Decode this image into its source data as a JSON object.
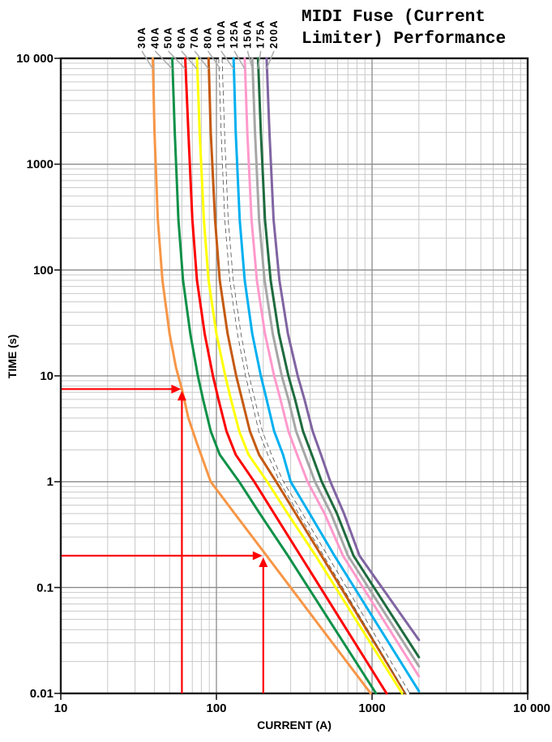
{
  "title": {
    "line1": "MIDI Fuse (Current",
    "line2": "Limiter) Performance"
  },
  "axes": {
    "x_label": "CURRENT (A)",
    "y_label": "TIME (s)",
    "x_ticks": [
      "10",
      "100",
      "1000",
      "10 000"
    ],
    "y_ticks": [
      "10 000",
      "1000",
      "100",
      "10",
      "1",
      "0.1",
      "0.01"
    ]
  },
  "colors": {
    "annotation": "#FF0000",
    "grid_major": "#8C8C8C",
    "grid_minor": "#C9C9C9",
    "axis_border": "#1A1A1A",
    "leader_line": "#ABABAB"
  },
  "chart_data": {
    "type": "line",
    "title": "MIDI Fuse (Current Limiter) Performance",
    "xlabel": "CURRENT (A)",
    "ylabel": "TIME (s)",
    "x_axis": {
      "scale": "log",
      "min": 10,
      "max": 10000
    },
    "y_axis": {
      "scale": "log",
      "min": 0.01,
      "max": 10000
    },
    "grid": "log major and minor, on",
    "legend": "rotated labels above plot with leader lines",
    "series": [
      {
        "name": "30A",
        "color": "#F79646",
        "style": "solid",
        "points": [
          [
            39,
            10000
          ],
          [
            40,
            2000
          ],
          [
            42,
            300
          ],
          [
            45,
            80
          ],
          [
            50,
            25
          ],
          [
            55,
            12
          ],
          [
            60,
            7.5
          ],
          [
            66,
            4
          ],
          [
            75,
            2.3
          ],
          [
            92,
            1
          ],
          [
            131,
            0.5
          ],
          [
            210,
            0.2
          ],
          [
            300,
            0.1
          ],
          [
            514,
            0.035
          ],
          [
            980,
            0.01
          ]
        ]
      },
      {
        "name": "40A",
        "color": "#0F9148",
        "style": "solid",
        "points": [
          [
            52,
            10000
          ],
          [
            54,
            2000
          ],
          [
            57,
            300
          ],
          [
            61,
            80
          ],
          [
            68,
            25
          ],
          [
            76,
            10
          ],
          [
            82,
            6
          ],
          [
            92,
            3
          ],
          [
            105,
            1.8
          ],
          [
            140,
            1
          ],
          [
            190,
            0.5
          ],
          [
            288,
            0.2
          ],
          [
            1060,
            0.01
          ]
        ]
      },
      {
        "name": "50A",
        "color": "#FF0000",
        "style": "solid",
        "points": [
          [
            63,
            10000
          ],
          [
            66,
            2000
          ],
          [
            70,
            300
          ],
          [
            75,
            80
          ],
          [
            84,
            25
          ],
          [
            95,
            10
          ],
          [
            103,
            6
          ],
          [
            116,
            3
          ],
          [
            133,
            1.8
          ],
          [
            175,
            1
          ],
          [
            235,
            0.5
          ],
          [
            347,
            0.2
          ],
          [
            1240,
            0.01
          ]
        ]
      },
      {
        "name": "60A",
        "color": "#FFFF00",
        "style": "solid",
        "points": [
          [
            75,
            10000
          ],
          [
            78,
            2000
          ],
          [
            83,
            300
          ],
          [
            89,
            80
          ],
          [
            100,
            25
          ],
          [
            114,
            10
          ],
          [
            124,
            6
          ],
          [
            140,
            3
          ],
          [
            161,
            1.8
          ],
          [
            212,
            1
          ],
          [
            287,
            0.5
          ],
          [
            434,
            0.2
          ],
          [
            1560,
            0.01
          ]
        ]
      },
      {
        "name": "70A",
        "color": "#C55A11",
        "style": "solid",
        "points": [
          [
            89,
            10000
          ],
          [
            92,
            2000
          ],
          [
            98,
            300
          ],
          [
            105,
            80
          ],
          [
            118,
            25
          ],
          [
            134,
            10
          ],
          [
            146,
            6
          ],
          [
            164,
            3
          ],
          [
            188,
            1.8
          ],
          [
            242,
            1
          ],
          [
            323,
            0.5
          ],
          [
            473,
            0.2
          ],
          [
            1640,
            0.01
          ]
        ]
      },
      {
        "name": "80A",
        "color": "#FFFFFF",
        "style": "white-dashed-outline",
        "points": [
          [
            106,
            10000
          ],
          [
            110,
            2000
          ],
          [
            116,
            300
          ],
          [
            125,
            80
          ],
          [
            140,
            25
          ],
          [
            158,
            10
          ],
          [
            172,
            6
          ],
          [
            192,
            3
          ],
          [
            220,
            1.8
          ],
          [
            262,
            1
          ],
          [
            347,
            0.5
          ],
          [
            503,
            0.2
          ],
          [
            1700,
            0.01
          ]
        ]
      },
      {
        "name": "100A",
        "color": "#00B0F0",
        "style": "solid",
        "points": [
          [
            129,
            10000
          ],
          [
            133,
            2000
          ],
          [
            141,
            300
          ],
          [
            152,
            80
          ],
          [
            170,
            25
          ],
          [
            193,
            10
          ],
          [
            210,
            6
          ],
          [
            235,
            3
          ],
          [
            268,
            1.8
          ],
          [
            300,
            1
          ],
          [
            397,
            0.5
          ],
          [
            573,
            0.2
          ],
          [
            2000,
            0.0105
          ]
        ]
      },
      {
        "name": "125A",
        "color": "#FF99CC",
        "style": "solid",
        "points": [
          [
            152,
            10000
          ],
          [
            158,
            2000
          ],
          [
            168,
            300
          ],
          [
            182,
            80
          ],
          [
            205,
            25
          ],
          [
            235,
            10
          ],
          [
            258,
            6
          ],
          [
            290,
            3
          ],
          [
            330,
            1.8
          ],
          [
            385,
            1
          ],
          [
            495,
            0.5
          ],
          [
            650,
            0.2
          ],
          [
            2000,
            0.0145
          ]
        ]
      },
      {
        "name": "150A",
        "color": "#A6A6A6",
        "style": "solid",
        "points": [
          [
            170,
            10000
          ],
          [
            177,
            2000
          ],
          [
            188,
            300
          ],
          [
            204,
            80
          ],
          [
            230,
            25
          ],
          [
            263,
            10
          ],
          [
            290,
            6
          ],
          [
            325,
            3
          ],
          [
            370,
            1.8
          ],
          [
            430,
            1
          ],
          [
            545,
            0.5
          ],
          [
            700,
            0.2
          ],
          [
            2000,
            0.018
          ]
        ]
      },
      {
        "name": "175A",
        "color": "#1E6B3E",
        "style": "solid",
        "points": [
          [
            185,
            10000
          ],
          [
            193,
            2000
          ],
          [
            205,
            300
          ],
          [
            223,
            80
          ],
          [
            252,
            25
          ],
          [
            290,
            10
          ],
          [
            320,
            6
          ],
          [
            360,
            3
          ],
          [
            410,
            1.8
          ],
          [
            475,
            1
          ],
          [
            595,
            0.5
          ],
          [
            760,
            0.2
          ],
          [
            2000,
            0.022
          ]
        ]
      },
      {
        "name": "200A",
        "color": "#8064A2",
        "style": "solid",
        "points": [
          [
            210,
            10000
          ],
          [
            219,
            2000
          ],
          [
            233,
            300
          ],
          [
            254,
            80
          ],
          [
            288,
            25
          ],
          [
            333,
            10
          ],
          [
            368,
            6
          ],
          [
            415,
            3
          ],
          [
            470,
            1.8
          ],
          [
            540,
            1
          ],
          [
            660,
            0.5
          ],
          [
            830,
            0.2
          ],
          [
            2000,
            0.032
          ]
        ]
      }
    ],
    "annotations": [
      {
        "type": "crosshair-arrows",
        "color": "#FF0000",
        "time_s": 7.5,
        "current_a": 60,
        "meaning": "30A fuse opens in ~8 s at 60 A"
      },
      {
        "type": "crosshair-arrows",
        "color": "#FF0000",
        "time_s": 0.2,
        "current_a": 200,
        "meaning": "30A fuse opens in ~0.2 s at 200 A"
      }
    ]
  }
}
